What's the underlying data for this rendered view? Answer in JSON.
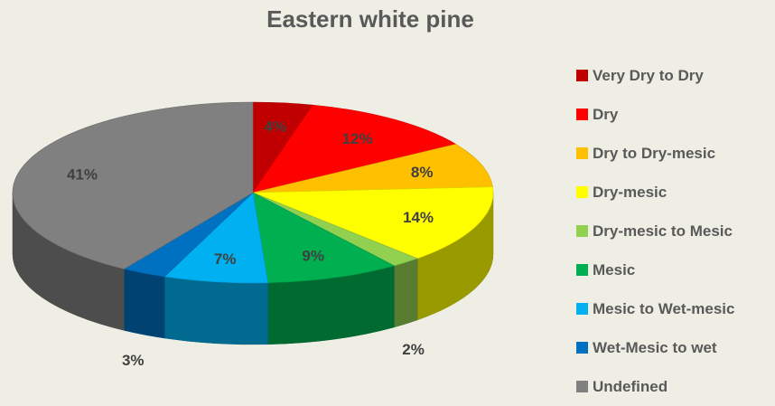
{
  "chart_data": {
    "type": "pie",
    "title": "Eastern white pine",
    "style": "3d",
    "legend_position": "right",
    "slices": [
      {
        "label": "Very Dry to Dry",
        "value": 4,
        "display": "4%",
        "color": "#c00000"
      },
      {
        "label": "Dry",
        "value": 12,
        "display": "12%",
        "color": "#ff0000"
      },
      {
        "label": "Dry to Dry-mesic",
        "value": 8,
        "display": "8%",
        "color": "#ffc000"
      },
      {
        "label": "Dry-mesic",
        "value": 14,
        "display": "14%",
        "color": "#ffff00"
      },
      {
        "label": "Dry-mesic to Mesic",
        "value": 2,
        "display": "2%",
        "color": "#92d050"
      },
      {
        "label": "Mesic",
        "value": 9,
        "display": "9%",
        "color": "#00b050"
      },
      {
        "label": "Mesic to Wet-mesic",
        "value": 7,
        "display": "7%",
        "color": "#00b0f0"
      },
      {
        "label": "Wet-Mesic to wet",
        "value": 3,
        "display": "3%",
        "color": "#0070c0"
      },
      {
        "label": "Undefined",
        "value": 41,
        "display": "41%",
        "color": "#808080"
      }
    ]
  }
}
